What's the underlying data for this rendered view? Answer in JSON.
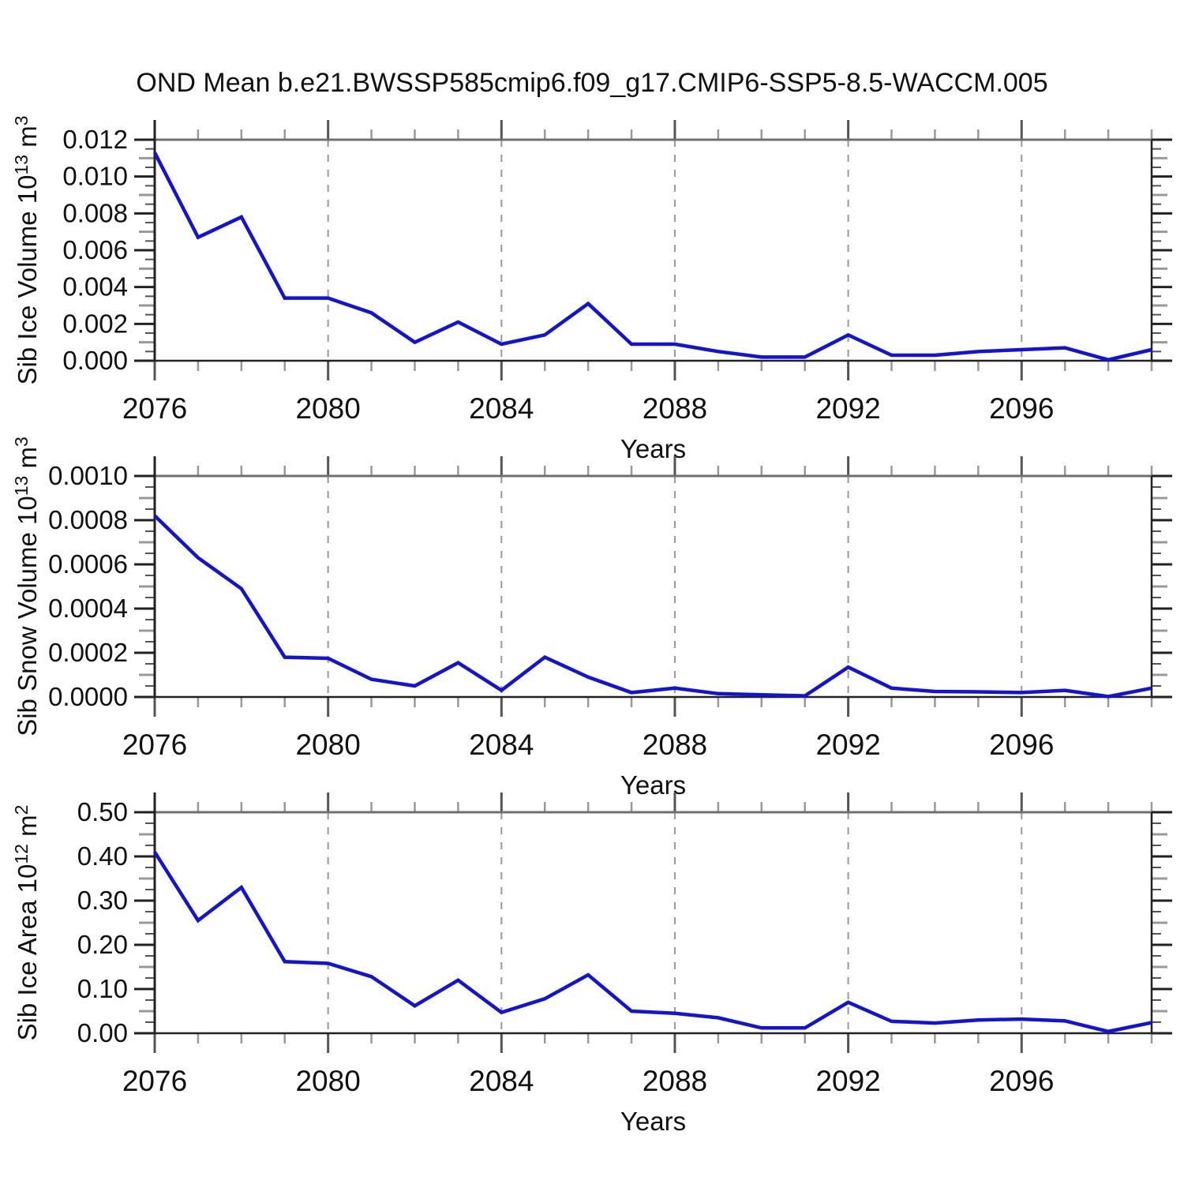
{
  "page": {
    "title": "OND Mean b.e21.BWSSP585cmip6.f09_g17.CMIP6-SSP5-8.5-WACCM.005",
    "background": "#ffffff"
  },
  "style": {
    "line_color": "#1212dd",
    "grid_color": "#999999",
    "box_top_color": "#707070",
    "box_color": "#222222",
    "major_tick_color": "#555555",
    "minor_tick_color": "#999999",
    "y_major_tick_color": "#222222",
    "y_minor_tick_color": "#555555",
    "y_mid_tick_color": "#999999",
    "text_color": "#111111"
  },
  "chart_data": [
    {
      "type": "line",
      "name": "sib-ice-volume",
      "title": "OND Mean b.e21.BWSSP585cmip6.f09_g17.CMIP6-SSP5-8.5-WACCM.005",
      "ylabel": "Sib Ice Volume 10^13^ m^3^",
      "xlabel": "Years",
      "x": [
        2076,
        2077,
        2078,
        2079,
        2080,
        2081,
        2082,
        2083,
        2084,
        2085,
        2086,
        2087,
        2088,
        2089,
        2090,
        2091,
        2092,
        2093,
        2094,
        2095,
        2096,
        2097,
        2098,
        2099
      ],
      "values": [
        0.0113,
        0.0067,
        0.0078,
        0.0034,
        0.0034,
        0.0026,
        0.001,
        0.0021,
        0.0009,
        0.0014,
        0.0031,
        0.0009,
        0.0009,
        0.0005,
        0.0002,
        0.0002,
        0.0014,
        0.0003,
        0.0003,
        0.0005,
        0.0006,
        0.0007,
        5e-05,
        0.0006
      ],
      "ylim": [
        0,
        0.012
      ],
      "ytick_labels": [
        "0.000",
        "0.002",
        "0.004",
        "0.006",
        "0.008",
        "0.010",
        "0.012"
      ],
      "yminor_step": 0.0005,
      "xlim": [
        2076,
        2099
      ],
      "xtick_years": [
        2076,
        2080,
        2084,
        2088,
        2092,
        2096
      ],
      "xtick_labels": [
        "2076",
        "2080",
        "2084",
        "2088",
        "2092",
        "2096"
      ],
      "xminor_step": 1,
      "grid_years": [
        2080,
        2084,
        2088,
        2092,
        2096
      ],
      "grid": true,
      "legend": "none"
    },
    {
      "type": "line",
      "name": "sib-snow-volume",
      "title": "",
      "ylabel": "Sib Snow Volume 10^13^ m^3^",
      "xlabel": "Years",
      "x": [
        2076,
        2077,
        2078,
        2079,
        2080,
        2081,
        2082,
        2083,
        2084,
        2085,
        2086,
        2087,
        2088,
        2089,
        2090,
        2091,
        2092,
        2093,
        2094,
        2095,
        2096,
        2097,
        2098,
        2099
      ],
      "values": [
        0.00082,
        0.00063,
        0.00049,
        0.00018,
        0.000175,
        8e-05,
        5e-05,
        0.000155,
        3e-05,
        0.00018,
        9e-05,
        2e-05,
        4e-05,
        1.5e-05,
        1e-05,
        5e-06,
        0.000135,
        4e-05,
        2.5e-05,
        2.3e-05,
        2e-05,
        3e-05,
        2e-06,
        4e-05
      ],
      "ylim": [
        0,
        0.001
      ],
      "ytick_labels": [
        "0.0000",
        "0.0002",
        "0.0004",
        "0.0006",
        "0.0008",
        "0.0010"
      ],
      "yminor_step": 5e-05,
      "xlim": [
        2076,
        2099
      ],
      "xtick_years": [
        2076,
        2080,
        2084,
        2088,
        2092,
        2096
      ],
      "xtick_labels": [
        "2076",
        "2080",
        "2084",
        "2088",
        "2092",
        "2096"
      ],
      "xminor_step": 1,
      "grid_years": [
        2080,
        2084,
        2088,
        2092,
        2096
      ],
      "grid": true,
      "legend": "none"
    },
    {
      "type": "line",
      "name": "sib-ice-area",
      "title": "",
      "ylabel": "Sib Ice Area 10^12^ m^2^",
      "xlabel": "Years",
      "x": [
        2076,
        2077,
        2078,
        2079,
        2080,
        2081,
        2082,
        2083,
        2084,
        2085,
        2086,
        2087,
        2088,
        2089,
        2090,
        2091,
        2092,
        2093,
        2094,
        2095,
        2096,
        2097,
        2098,
        2099
      ],
      "values": [
        0.41,
        0.255,
        0.33,
        0.162,
        0.158,
        0.128,
        0.062,
        0.12,
        0.047,
        0.078,
        0.132,
        0.05,
        0.045,
        0.035,
        0.012,
        0.012,
        0.07,
        0.027,
        0.023,
        0.03,
        0.032,
        0.028,
        0.004,
        0.024
      ],
      "ylim": [
        0,
        0.5
      ],
      "ytick_labels": [
        "0.00",
        "0.10",
        "0.20",
        "0.30",
        "0.40",
        "0.50"
      ],
      "yminor_step": 0.025,
      "xlim": [
        2076,
        2099
      ],
      "xtick_years": [
        2076,
        2080,
        2084,
        2088,
        2092,
        2096
      ],
      "xtick_labels": [
        "2076",
        "2080",
        "2084",
        "2088",
        "2092",
        "2096"
      ],
      "xminor_step": 1,
      "grid_years": [
        2080,
        2084,
        2088,
        2092,
        2096
      ],
      "grid": true,
      "legend": "none"
    }
  ]
}
